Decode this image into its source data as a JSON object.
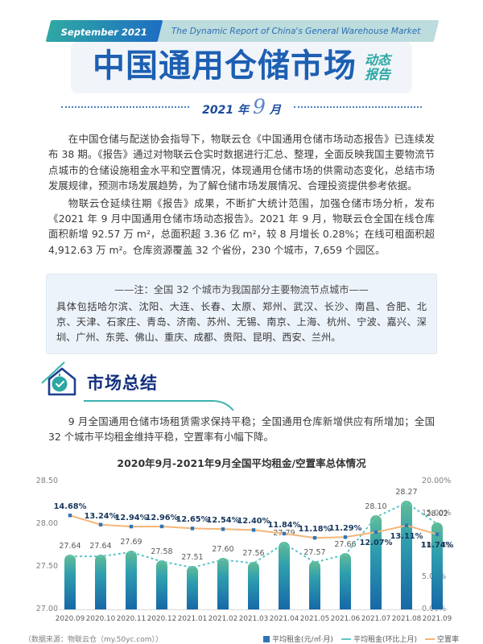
{
  "header": {
    "badge": "September 2021",
    "subtitle": "The Dynamic Report of China's General Warehouse Market",
    "title": "中国通用仓储市场",
    "suffix_line1": "动态",
    "suffix_line2": "报告",
    "date_year": "2021 年",
    "date_month": "9",
    "date_unit": "月"
  },
  "intro": {
    "p1": "在中国仓储与配送协会指导下，物联云仓《中国通用仓储市场动态报告》已连续发布 38 期。《报告》通过对物联云仓实时数据进行汇总、整理，全面反映我国主要物流节点城市的仓储设施租金水平和空置情况，体现通用仓储市场的供需动态变化，总结市场发展规律，预测市场发展趋势，为了解仓储市场发展情况、合理投资提供参考依据。",
    "p2": "物联云仓延续往期《报告》成果，不断扩大统计范围，加强仓储市场分析，发布《2021 年 9 月中国通用仓储市场动态报告》。2021 年 9 月，物联云仓全国在线仓库面积新增 92.57 万 m²，总面积超 3.36 亿 m²，较 8 月增长 0.28%；在线可租面积超 4,912.63 万 m²。仓库资源覆盖 32 个省份，230 个城市，7,659 个园区。"
  },
  "note": {
    "title": "——注：全国 32 个城市为我国部分主要物流节点城市——",
    "body": "具体包括哈尔滨、沈阳、大连、长春、太原、郑州、武汉、长沙、南昌、合肥、北京、天津、石家庄、青岛、济南、苏州、无锡、南京、上海、杭州、宁波、嘉兴、深圳、广州、东莞、佛山、重庆、成都、贵阳、昆明、西安、兰州。"
  },
  "market_summary": {
    "title": "市场总结",
    "body": "9 月全国通用仓储市场租赁需求保持平稳；全国通用仓库新增供应有所增加；全国 32 个城市平均租金维持平稳，空置率有小幅下降。"
  },
  "chart_data": {
    "type": "bar",
    "title": "2020年9月-2021年9月全国平均租金/空置率总体情况",
    "categories": [
      "2020.09",
      "2020.10",
      "2020.11",
      "2020.12",
      "2021.01",
      "2021.02",
      "2021.03",
      "2021.04",
      "2021.05",
      "2021.06",
      "2021.07",
      "2021.08",
      "2021.09"
    ],
    "series": [
      {
        "name": "平均租金(元/㎡·月)",
        "type": "bar",
        "axis": "left",
        "values": [
          27.64,
          27.64,
          27.69,
          27.58,
          27.51,
          27.6,
          27.56,
          27.79,
          27.57,
          27.66,
          28.1,
          28.27,
          28.02
        ]
      },
      {
        "name": "平均租金(环比上月)",
        "type": "line",
        "style": "dashed",
        "axis": "left",
        "values": [
          27.64,
          27.64,
          27.69,
          27.58,
          27.51,
          27.6,
          27.56,
          27.79,
          27.57,
          27.66,
          28.1,
          28.27,
          28.02
        ]
      },
      {
        "name": "空置率",
        "type": "line",
        "style": "solid",
        "axis": "right",
        "values": [
          14.68,
          13.24,
          12.94,
          12.96,
          12.65,
          12.54,
          12.4,
          11.84,
          11.18,
          11.29,
          12.07,
          13.11,
          11.74
        ]
      }
    ],
    "left_axis": {
      "ticks": [
        "28.50",
        "28.00",
        "27.50",
        "27.00"
      ],
      "min": 27.0,
      "max": 28.5
    },
    "right_axis": {
      "ticks": [
        "20.00%",
        "15.00%",
        "10.00%",
        "5.00%",
        "0.00%"
      ],
      "min": 0,
      "max": 20
    },
    "grid": false,
    "legend_position": "bottom",
    "source": "（数据来源：物联云仓（my.50yc.com））",
    "colors": {
      "bar_top": "#63bd95",
      "bar_mid": "#2f9fae",
      "bar_bottom": "#1668a8",
      "rent_line": "#5ec6c8",
      "vacancy_line": "#f4b678",
      "marker": "#2e75b6",
      "accent_teal": "#2aa7a3",
      "accent_blue": "#1d5fb2"
    }
  }
}
